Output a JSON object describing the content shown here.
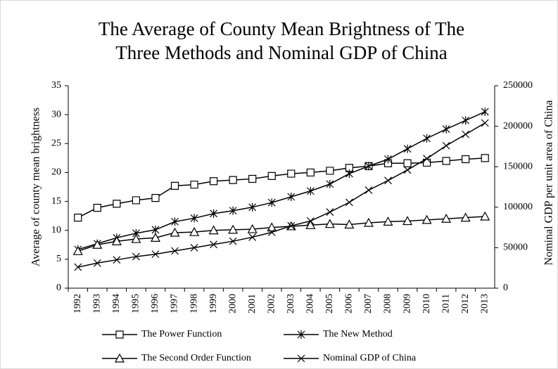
{
  "chart_data": {
    "type": "line",
    "title": [
      "The Average of County Mean Brightness of The",
      "Three Methods and Nominal GDP of China"
    ],
    "y_label": "Average of county mean brightness",
    "y2_label": "Nominal GDP per unit area of China",
    "categories": [
      "1992",
      "1993",
      "1994",
      "1995",
      "1996",
      "1997",
      "1998",
      "1999",
      "2000",
      "2001",
      "2002",
      "2003",
      "2004",
      "2005",
      "2006",
      "2007",
      "2008",
      "2009",
      "2010",
      "2011",
      "2012",
      "2013"
    ],
    "series": [
      {
        "name": "The Power Function",
        "color": "#000000",
        "marker": "square",
        "values": [
          12.2,
          13.9,
          14.6,
          15.2,
          15.6,
          17.7,
          17.9,
          18.5,
          18.7,
          18.9,
          19.4,
          19.8,
          20.0,
          20.3,
          20.8,
          21.1,
          21.6,
          21.6,
          21.7,
          22.0,
          22.3,
          22.5
        ]
      },
      {
        "name": "The New Method",
        "color": "#000000",
        "marker": "asterisk",
        "values": [
          6.7,
          7.7,
          8.7,
          9.5,
          10.1,
          11.5,
          12.1,
          12.9,
          13.4,
          14.0,
          14.8,
          15.8,
          16.8,
          18.0,
          19.8,
          21.1,
          22.3,
          24.1,
          25.9,
          27.5,
          29.0,
          30.5
        ]
      },
      {
        "name": "The Second Order Function",
        "color": "#000000",
        "marker": "triangle",
        "values": [
          6.4,
          7.5,
          8.1,
          8.5,
          8.7,
          9.6,
          9.7,
          10.0,
          10.1,
          10.2,
          10.5,
          10.7,
          10.9,
          11.1,
          11.0,
          11.3,
          11.5,
          11.6,
          11.8,
          12.0,
          12.2,
          12.4
        ]
      },
      {
        "name": "Nominal GDP of China",
        "color": "#000000",
        "marker": "x",
        "axis": "y2",
        "values": [
          26000,
          31000,
          35000,
          39000,
          42000,
          46000,
          50000,
          54000,
          58000,
          63000,
          69000,
          77000,
          83000,
          94000,
          106000,
          121000,
          133000,
          146000,
          160000,
          176000,
          190000,
          204000
        ]
      }
    ],
    "ylim": [
      0,
      35
    ],
    "yticks": [
      0,
      5,
      10,
      15,
      20,
      25,
      30,
      35
    ],
    "y2lim": [
      0,
      250000
    ],
    "y2ticks": [
      0,
      50000,
      100000,
      150000,
      200000,
      250000
    ]
  }
}
